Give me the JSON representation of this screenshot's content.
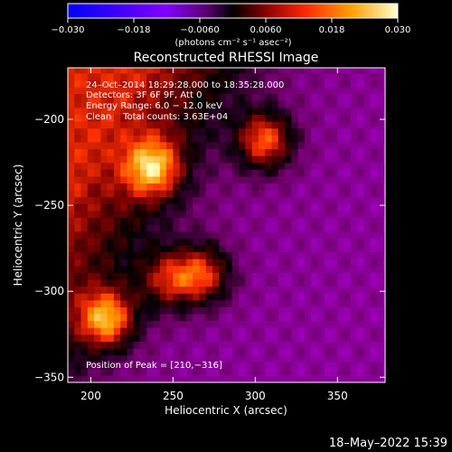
{
  "chart_data": {
    "type": "heatmap",
    "title": "Reconstructed RHESSI Image",
    "xlabel": "Heliocentric X (arcsec)",
    "ylabel": "Heliocentric Y (arcsec)",
    "xlim": [
      186,
      379
    ],
    "ylim": [
      -353,
      -170
    ],
    "x_ticks": [
      200,
      250,
      300,
      350
    ],
    "y_ticks": [
      -200,
      -250,
      -300,
      -350
    ],
    "x_tick_labels": [
      "200",
      "250",
      "300",
      "350"
    ],
    "y_tick_labels": [
      "−200",
      "−250",
      "−300",
      "−350"
    ],
    "colorbar": {
      "min": -0.03,
      "max": 0.03,
      "ticks": [
        -0.03,
        -0.018,
        -0.006,
        0.006,
        0.018,
        0.03
      ],
      "tick_labels": [
        "−0.030",
        "−0.018",
        "−0.0060",
        "0.0060",
        "0.018",
        "0.030"
      ],
      "units_label": "(photons cm⁻² s⁻¹ asec⁻²)"
    },
    "annotations": [
      "24–Oct–2014 18:29:28.000 to 18:35:28.000",
      "Detectors: 3F 6F 9F, Att 0",
      "Energy Range: 6.0 − 12.0 keV",
      "Clean    Total counts: 3.63E+04",
      "Position of Peak = [210,−316]"
    ],
    "sources": [
      {
        "x": 210,
        "y": -316,
        "peak": 0.03
      },
      {
        "x": 238,
        "y": -228,
        "peak": 0.026
      },
      {
        "x": 306,
        "y": -212,
        "peak": 0.027
      },
      {
        "x": 268,
        "y": -290,
        "peak": 0.024
      },
      {
        "x": 247,
        "y": -293,
        "peak": 0.019
      }
    ],
    "colormap": [
      "#0000ff",
      "#5a00ff",
      "#a000c0",
      "#6a0060",
      "#000000",
      "#7a0000",
      "#ff3000",
      "#ffa000",
      "#ffffc0"
    ]
  },
  "footer": {
    "timestamp": "18–May–2022 15:39"
  }
}
